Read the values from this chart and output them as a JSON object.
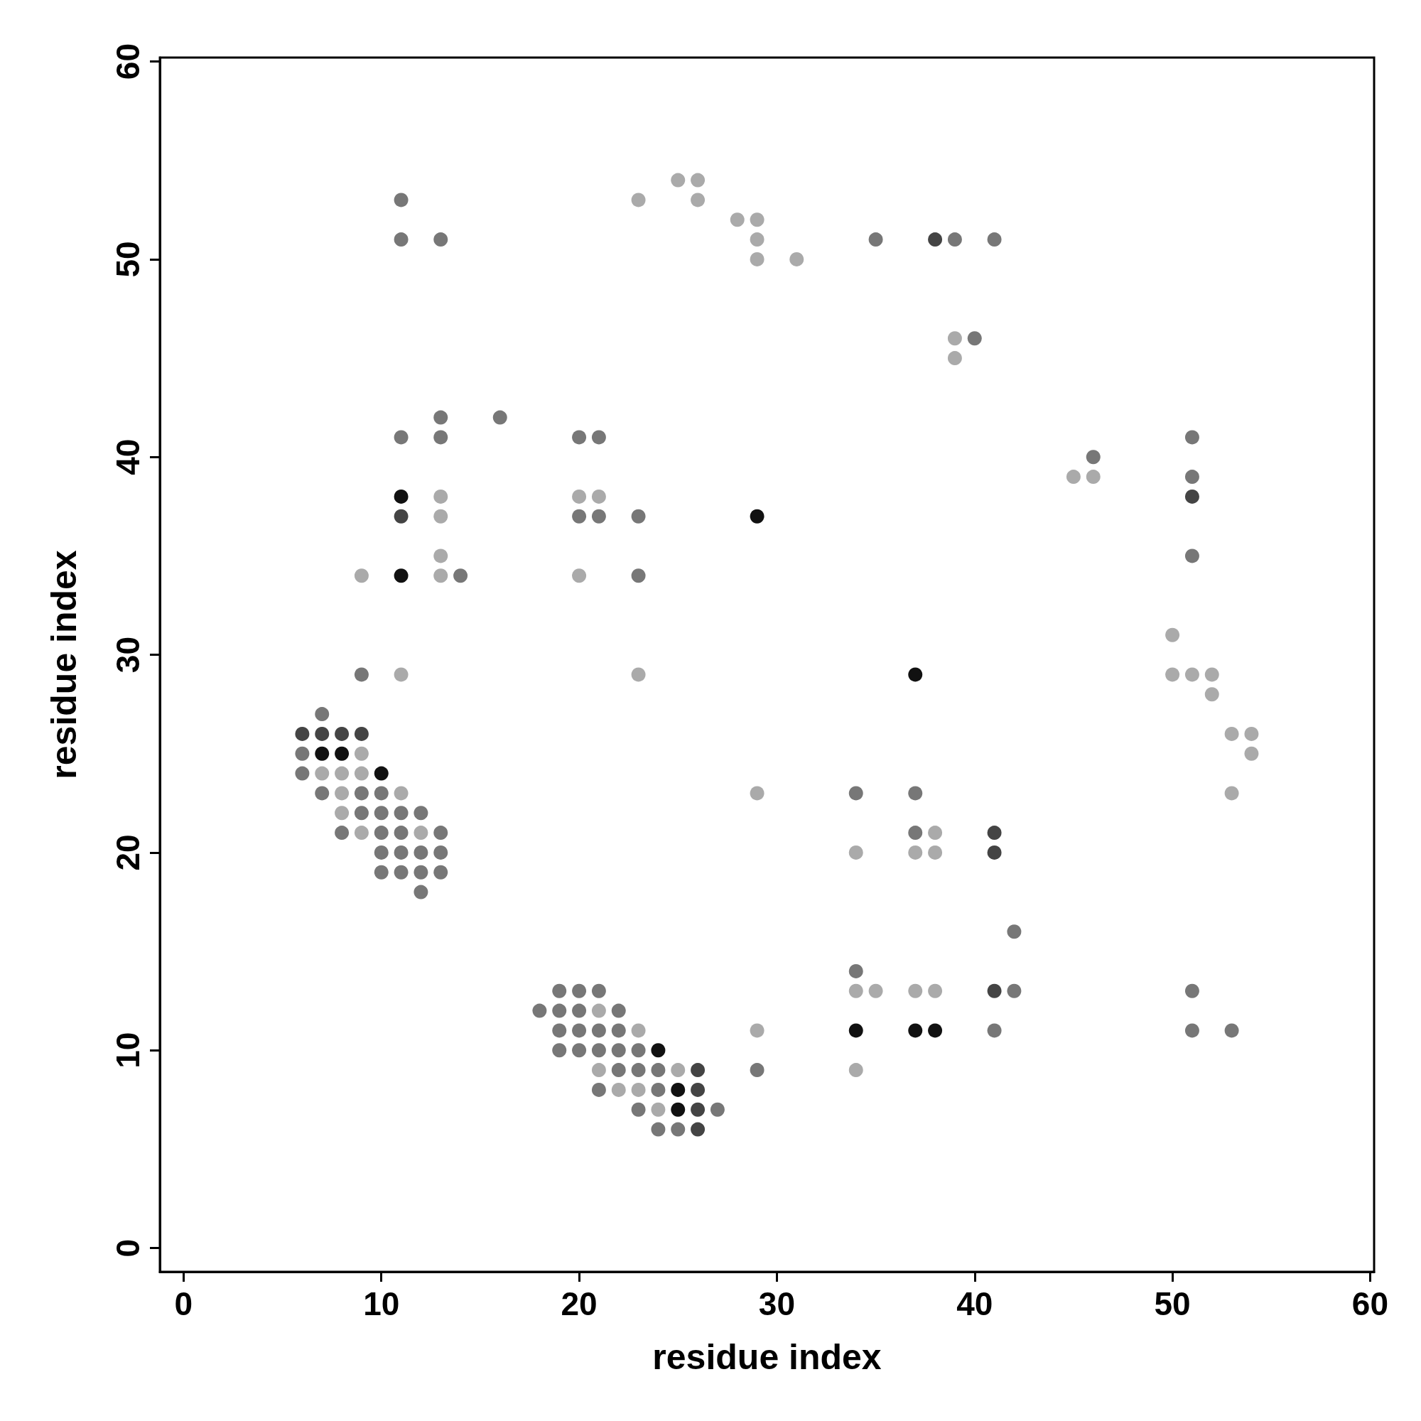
{
  "chart_data": {
    "type": "scatter",
    "xlabel": "residue index",
    "ylabel": "residue index",
    "xlim": [
      -1.2,
      60.2
    ],
    "ylim": [
      -1.2,
      60.2
    ],
    "xticks": [
      0,
      10,
      20,
      30,
      40,
      50,
      60
    ],
    "yticks": [
      0,
      10,
      20,
      30,
      40,
      50,
      60
    ],
    "grid": false,
    "marker": "circle",
    "series": [
      {
        "color": "#aaaaaa",
        "x": [
          7,
          8,
          8,
          8,
          9,
          9,
          9,
          9,
          11,
          11,
          12,
          13,
          13,
          13,
          13,
          20,
          20,
          21,
          21,
          21,
          22,
          23,
          23,
          23,
          23,
          24,
          25,
          25,
          26,
          26,
          28,
          29,
          29,
          29,
          29,
          29,
          31,
          34,
          34,
          34,
          35,
          37,
          37,
          38,
          38,
          38,
          39,
          39,
          45,
          46,
          50,
          50,
          51,
          52,
          52,
          53,
          53,
          54,
          54
        ],
        "values": [
          24,
          24,
          23,
          22,
          34,
          25,
          24,
          21,
          29,
          23,
          21,
          38,
          37,
          35,
          34,
          38,
          34,
          38,
          12,
          9,
          8,
          53,
          29,
          11,
          8,
          7,
          54,
          9,
          54,
          53,
          52,
          52,
          51,
          50,
          23,
          11,
          50,
          20,
          13,
          9,
          13,
          20,
          13,
          21,
          20,
          13,
          46,
          45,
          39,
          39,
          31,
          29,
          29,
          29,
          28,
          26,
          23,
          26,
          25
        ]
      },
      {
        "color": "#777777",
        "x": [
          6,
          6,
          7,
          7,
          8,
          9,
          9,
          9,
          10,
          10,
          10,
          10,
          10,
          11,
          11,
          11,
          11,
          11,
          11,
          11,
          12,
          12,
          12,
          12,
          13,
          13,
          13,
          13,
          13,
          13,
          14,
          16,
          18,
          19,
          19,
          19,
          19,
          20,
          20,
          20,
          20,
          20,
          20,
          21,
          21,
          21,
          21,
          21,
          21,
          22,
          22,
          22,
          22,
          23,
          23,
          23,
          23,
          23,
          24,
          24,
          24,
          25,
          27,
          29,
          34,
          34,
          35,
          37,
          37,
          39,
          40,
          41,
          41,
          42,
          42,
          46,
          51,
          51,
          51,
          51,
          51,
          53
        ],
        "values": [
          25,
          24,
          27,
          23,
          21,
          29,
          23,
          22,
          23,
          22,
          21,
          20,
          19,
          53,
          51,
          41,
          22,
          21,
          20,
          19,
          22,
          20,
          19,
          18,
          51,
          42,
          41,
          21,
          20,
          19,
          34,
          42,
          12,
          13,
          12,
          11,
          10,
          41,
          37,
          13,
          12,
          11,
          10,
          41,
          37,
          13,
          11,
          10,
          8,
          12,
          11,
          10,
          9,
          37,
          34,
          10,
          9,
          7,
          9,
          8,
          6,
          6,
          7,
          9,
          23,
          14,
          51,
          23,
          21,
          51,
          46,
          51,
          11,
          16,
          13,
          40,
          41,
          39,
          35,
          13,
          11,
          11
        ]
      },
      {
        "color": "#444444",
        "x": [
          6,
          7,
          8,
          9,
          11,
          26,
          26,
          26,
          26,
          38,
          41,
          41,
          41,
          51
        ],
        "values": [
          26,
          26,
          26,
          26,
          37,
          9,
          8,
          7,
          6,
          51,
          21,
          20,
          13,
          38
        ]
      },
      {
        "color": "#111111",
        "x": [
          7,
          8,
          10,
          11,
          11,
          24,
          25,
          25,
          29,
          34,
          37,
          37,
          38
        ],
        "values": [
          25,
          25,
          24,
          38,
          34,
          10,
          8,
          7,
          37,
          11,
          29,
          11,
          11
        ]
      }
    ]
  }
}
